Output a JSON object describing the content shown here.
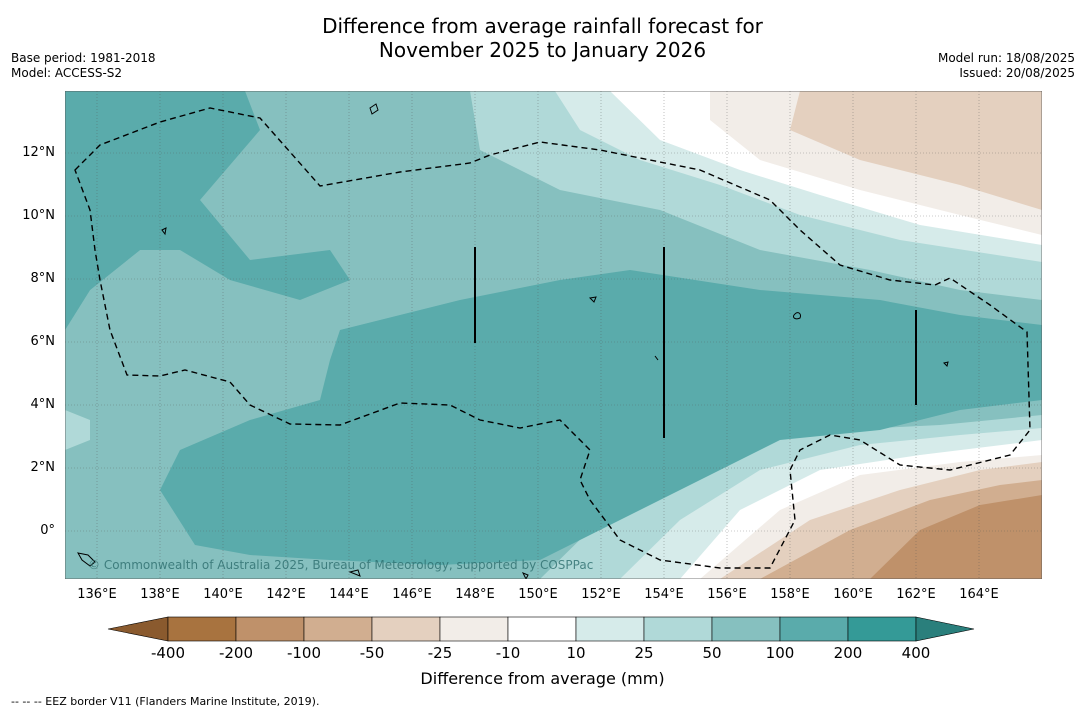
{
  "title_line1": "Difference from average rainfall forecast for",
  "title_line2": "November 2025 to January 2026",
  "meta_left": {
    "base_period": "Base period: 1981-2018",
    "model": "Model: ACCESS-S2"
  },
  "meta_right": {
    "model_run": "Model run: 18/08/2025",
    "issued": "Issued: 20/08/2025"
  },
  "x_ticks": [
    "136°E",
    "138°E",
    "140°E",
    "142°E",
    "144°E",
    "146°E",
    "148°E",
    "150°E",
    "152°E",
    "154°E",
    "156°E",
    "158°E",
    "160°E",
    "162°E",
    "164°E"
  ],
  "y_ticks": [
    "12°N",
    "10°N",
    "8°N",
    "6°N",
    "4°N",
    "2°N",
    "0°"
  ],
  "copyright": "© Commonwealth of Australia 2025, Bureau of Meteorology, supported by COSPPac",
  "colorbar": {
    "labels": [
      "-400",
      "-200",
      "-100",
      "-50",
      "-25",
      "-10",
      "10",
      "25",
      "50",
      "100",
      "200",
      "400"
    ],
    "colors": [
      "#a8733f",
      "#bf916a",
      "#d1ae90",
      "#e4d0bf",
      "#f2ede8",
      "#ffffff",
      "#d6ebea",
      "#b0d9d8",
      "#86c0bf",
      "#5aabab",
      "#349a97"
    ],
    "below_color": "#8a5a2e",
    "above_color": "#2a7f7c",
    "title": "Difference from average (mm)"
  },
  "footnote": "--  --  -- EEZ border V11 (Flanders Marine Institute, 2019)."
}
